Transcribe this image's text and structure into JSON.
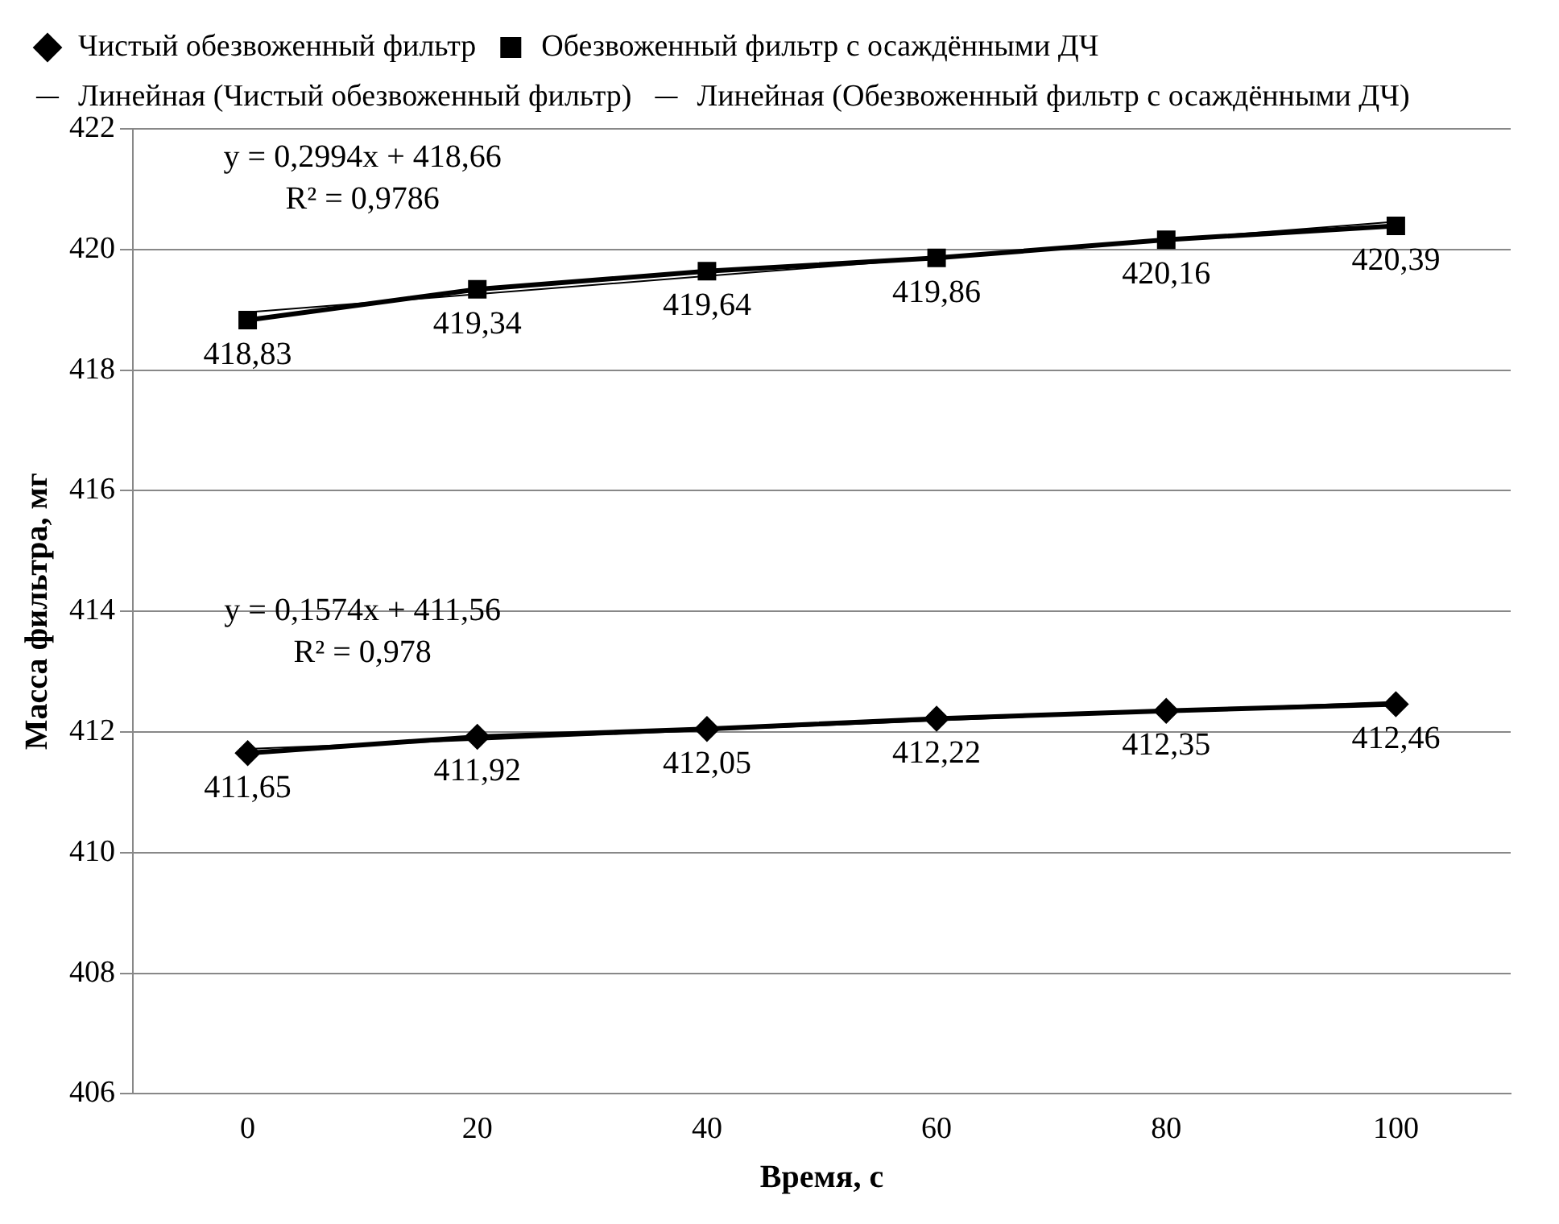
{
  "chart_data": {
    "type": "line",
    "xlabel": "Время, с",
    "ylabel": "Масса фильтра, мг",
    "categories": [
      "0",
      "20",
      "40",
      "60",
      "80",
      "100"
    ],
    "series": [
      {
        "name": "Чистый обезвоженный фильтр",
        "color": "#000000",
        "marker": "diamond",
        "values": [
          411.65,
          411.92,
          412.05,
          412.22,
          412.35,
          412.46
        ],
        "value_labels": [
          "411,65",
          "411,92",
          "412,05",
          "412,22",
          "412,35",
          "412,46"
        ]
      },
      {
        "name": "Обезвоженный фильтр с осаждёнными ДЧ",
        "color": "#000000",
        "marker": "square",
        "values": [
          418.83,
          419.34,
          419.64,
          419.86,
          420.16,
          420.39
        ],
        "value_labels": [
          "418,83",
          "419,34",
          "419,64",
          "419,86",
          "420,16",
          "420,39"
        ]
      },
      {
        "name": "Линейная (Чистый обезвоженный фильтр)",
        "color": "#000000",
        "marker": "none",
        "values": [
          411.72,
          411.87,
          412.03,
          412.19,
          412.35,
          412.5
        ]
      },
      {
        "name": "Линейная (Обезвоженный фильтр с осаждёнными ДЧ)",
        "color": "#000000",
        "marker": "none",
        "values": [
          418.96,
          419.26,
          419.56,
          419.86,
          420.16,
          420.46
        ]
      }
    ],
    "annotations": [
      "y = 0,2994x + 418,66",
      "R² = 0,9786",
      "y = 0,1574x + 411,56",
      "R² = 0,978"
    ],
    "ylim": [
      406,
      422
    ],
    "yticks": [
      406,
      408,
      410,
      412,
      414,
      416,
      418,
      420,
      422
    ],
    "grid": "y",
    "legend": "top",
    "line_style": "solid"
  }
}
